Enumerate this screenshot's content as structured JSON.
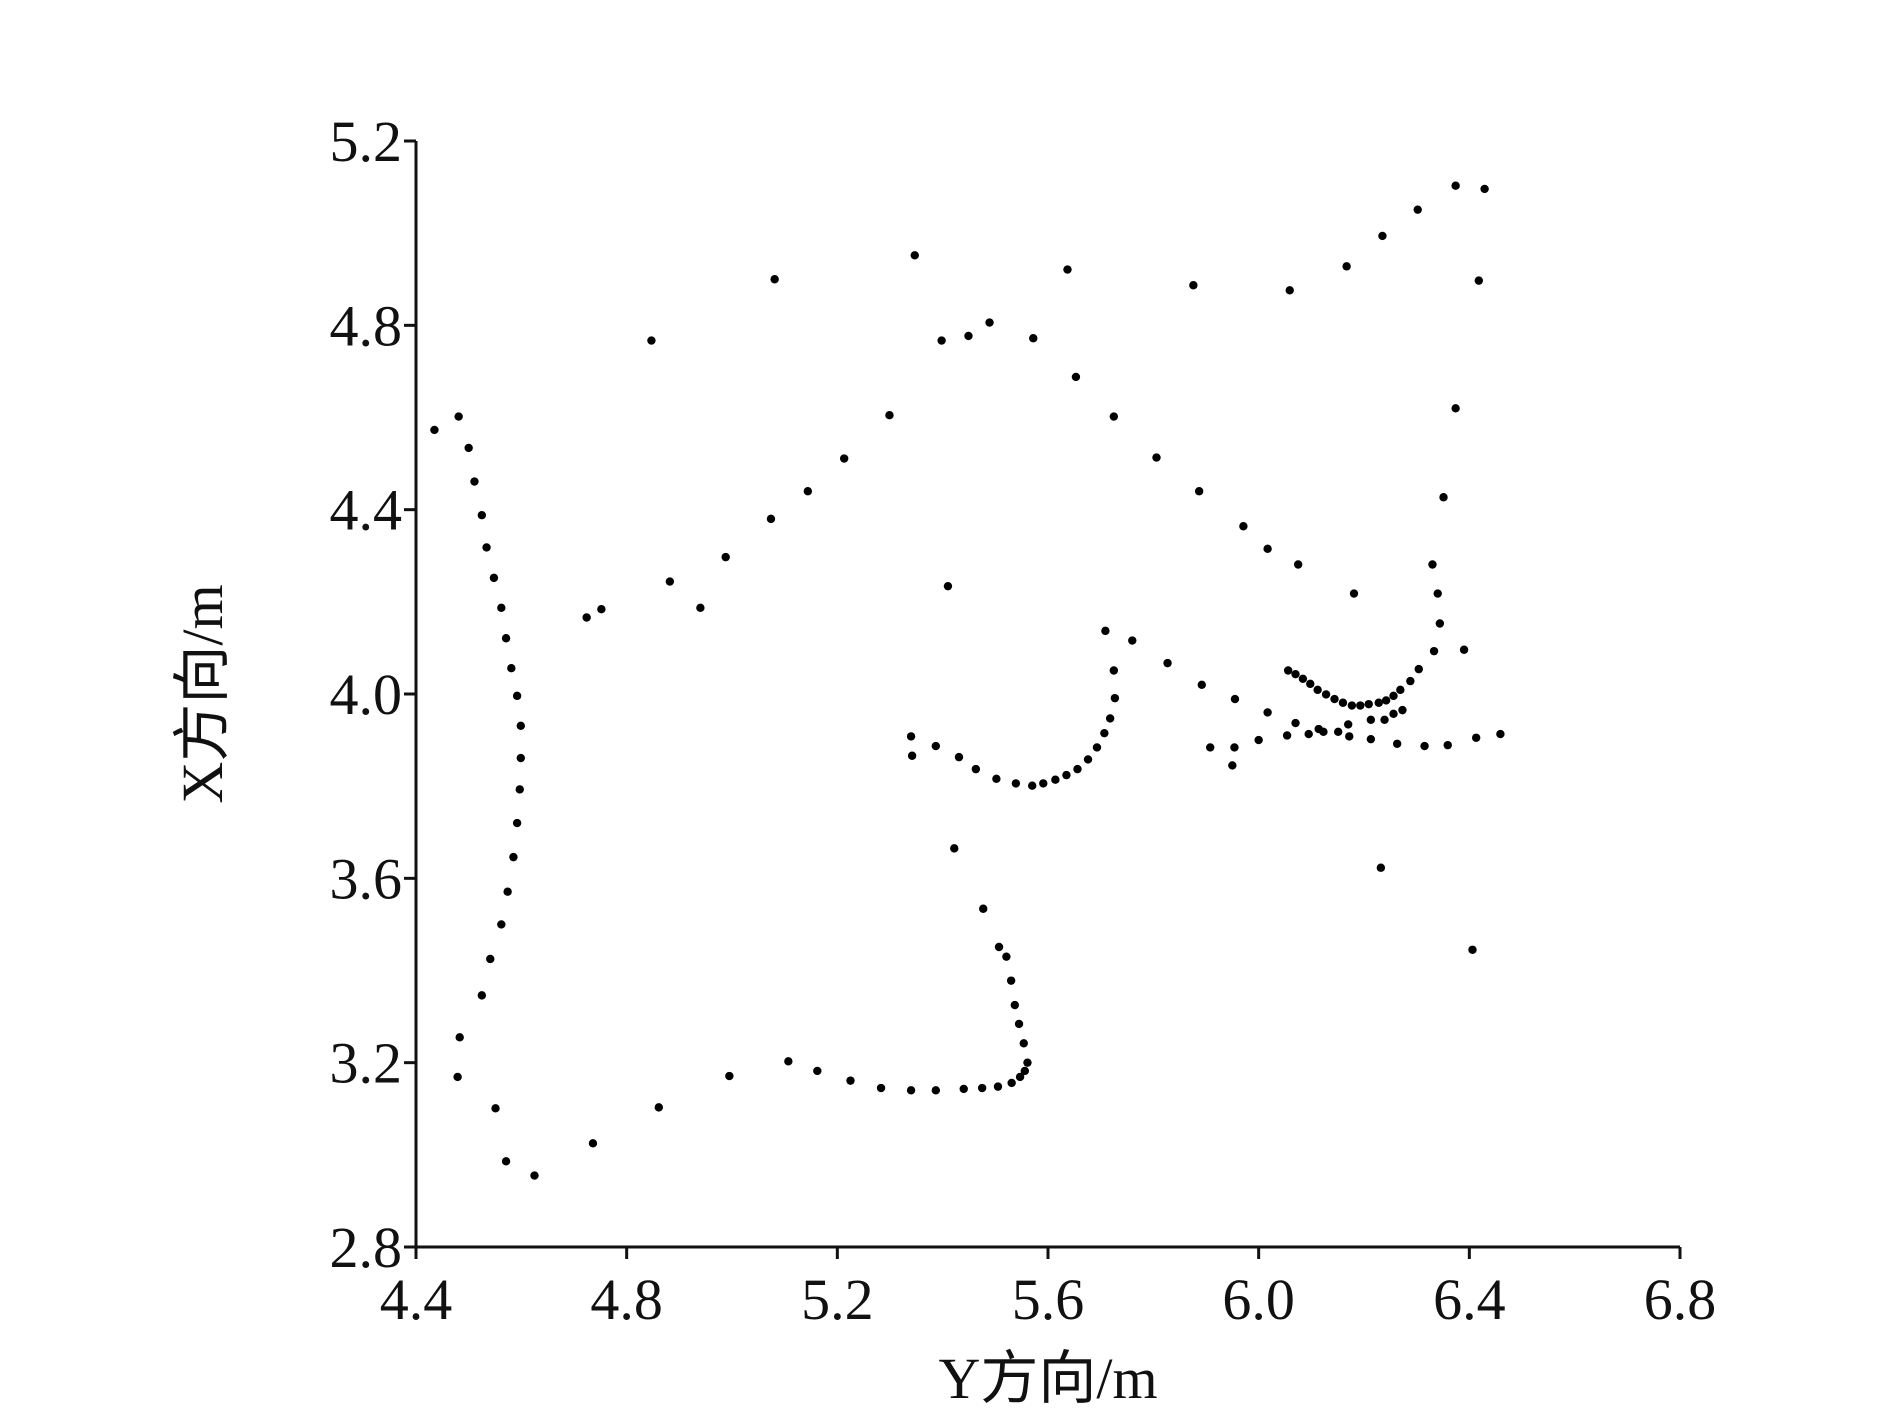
{
  "chart_data": {
    "type": "scatter",
    "x_label": "Y方向/m",
    "y_label": "X方向/m",
    "color": "#000000",
    "xlim": [
      4.4,
      6.8
    ],
    "xticks": [
      4.4,
      4.8,
      5.2,
      5.6,
      {
        "value": 6,
        "label": "6.0"
      },
      6.4,
      6.8
    ],
    "ylim": [
      2.8,
      5.2
    ],
    "yticks": [
      2.8,
      3.2,
      3.6,
      {
        "value": 4,
        "label": "4.0"
      },
      4.4,
      4.8,
      5.2
    ],
    "grid": false,
    "x": [
      4.435,
      4.481,
      4.5,
      4.511,
      4.525,
      4.534,
      4.548,
      4.562,
      4.571,
      4.581,
      4.592,
      4.599,
      4.599,
      4.597,
      4.592,
      4.585,
      4.574,
      4.562,
      4.541,
      4.525,
      4.483,
      4.479,
      4.551,
      4.571,
      4.625,
      4.736,
      4.861,
      4.995,
      5.107,
      5.162,
      5.225,
      5.283,
      5.34,
      5.387,
      5.44,
      5.475,
      5.505,
      5.531,
      5.547,
      5.556,
      5.561,
      5.554,
      5.545,
      5.537,
      5.53,
      5.521,
      5.507,
      5.477,
      5.422,
      5.41,
      4.724,
      4.752,
      4.882,
      4.94,
      4.988,
      5.074,
      5.144,
      5.213,
      5.299,
      5.398,
      5.449,
      5.489,
      5.572,
      5.653,
      5.725,
      5.806,
      5.887,
      5.971,
      6.017,
      6.075,
      6.181,
      4.847,
      5.081,
      5.347,
      5.637,
      5.876,
      6.059,
      6.167,
      6.235,
      6.302,
      6.374,
      6.429,
      6.418,
      6.374,
      6.351,
      6.33,
      6.34,
      6.344,
      6.333,
      6.39,
      6.232,
      6.406,
      5.34,
      5.342,
      5.387,
      5.431,
      5.463,
      5.502,
      5.539,
      5.57,
      5.591,
      5.614,
      5.635,
      5.656,
      5.676,
      5.693,
      5.707,
      5.718,
      5.727,
      5.725,
      5.709,
      5.76,
      5.827,
      5.892,
      5.955,
      6.017,
      5.908,
      5.954,
      5.95,
      6.0,
      6.056,
      6.07,
      6.084,
      6.098,
      6.112,
      6.128,
      6.144,
      6.16,
      6.177,
      6.193,
      6.209,
      6.228,
      6.242,
      6.256,
      6.269,
      6.288,
      6.304,
      6.239,
      6.256,
      6.054,
      6.095,
      6.123,
      6.151,
      6.172,
      6.213,
      6.263,
      6.315,
      6.359,
      6.413,
      6.459,
      6.07,
      6.114,
      6.17,
      6.213,
      6.273
    ],
    "values": [
      4.573,
      4.602,
      4.534,
      4.461,
      4.388,
      4.318,
      4.252,
      4.187,
      4.121,
      4.056,
      3.996,
      3.931,
      3.861,
      3.793,
      3.72,
      3.646,
      3.571,
      3.5,
      3.425,
      3.346,
      3.255,
      3.169,
      3.101,
      2.986,
      2.955,
      3.025,
      3.103,
      3.171,
      3.203,
      3.182,
      3.161,
      3.145,
      3.14,
      3.14,
      3.143,
      3.145,
      3.148,
      3.156,
      3.169,
      3.182,
      3.2,
      3.242,
      3.284,
      3.325,
      3.378,
      3.43,
      3.451,
      3.534,
      3.665,
      4.234,
      4.166,
      4.184,
      4.244,
      4.187,
      4.297,
      4.38,
      4.44,
      4.511,
      4.605,
      4.767,
      4.777,
      4.806,
      4.772,
      4.688,
      4.602,
      4.513,
      4.44,
      4.364,
      4.315,
      4.281,
      4.218,
      4.767,
      4.9,
      4.952,
      4.921,
      4.887,
      4.876,
      4.928,
      4.994,
      5.051,
      5.103,
      5.096,
      4.897,
      4.62,
      4.427,
      4.281,
      4.218,
      4.153,
      4.093,
      4.096,
      3.623,
      3.445,
      3.908,
      3.866,
      3.887,
      3.863,
      3.837,
      3.816,
      3.806,
      3.801,
      3.806,
      3.814,
      3.824,
      3.837,
      3.858,
      3.884,
      3.915,
      3.947,
      3.991,
      4.051,
      4.137,
      4.116,
      4.067,
      4.02,
      3.989,
      3.96,
      3.884,
      3.884,
      3.845,
      3.9,
      4.051,
      4.043,
      4.033,
      4.022,
      4.009,
      3.999,
      3.989,
      3.981,
      3.975,
      3.975,
      3.978,
      3.981,
      3.986,
      3.996,
      4.009,
      4.028,
      4.054,
      3.944,
      3.957,
      3.91,
      3.913,
      3.918,
      3.918,
      3.908,
      3.902,
      3.892,
      3.887,
      3.889,
      3.905,
      3.913,
      3.937,
      3.924,
      3.934,
      3.944,
      3.965
    ]
  }
}
